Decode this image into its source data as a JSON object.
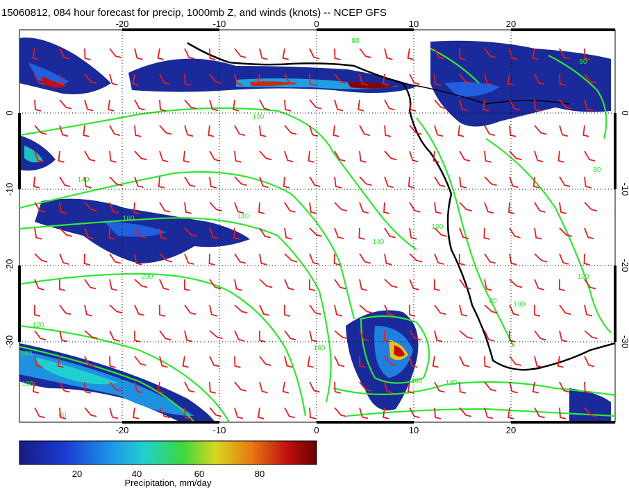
{
  "title": "15060812, 084 hour forecast for precip, 1000mb Z, and winds (knots) -- NCEP GFS",
  "map": {
    "lon_ticks": [
      "-20",
      "-10",
      "0",
      "10",
      "20"
    ],
    "lat_ticks": [
      "0",
      "-10",
      "-20",
      "-30"
    ],
    "contour_labels": [
      "120",
      "140",
      "160",
      "200",
      "160",
      "140",
      "120",
      "160",
      "80",
      "120",
      "140",
      "100",
      "80",
      "60",
      "160",
      "140",
      "120",
      "100",
      "80",
      "60"
    ]
  },
  "colorbar": {
    "ticks": [
      "20",
      "40",
      "60",
      "80"
    ],
    "label": "Precipitation, mm/day"
  },
  "colors": {
    "precip_low": "#1a2a9a",
    "precip_high": "#7a0000",
    "contour": "#2ee82e",
    "wind_barb": "#e81c1c",
    "coast": "#000000"
  }
}
